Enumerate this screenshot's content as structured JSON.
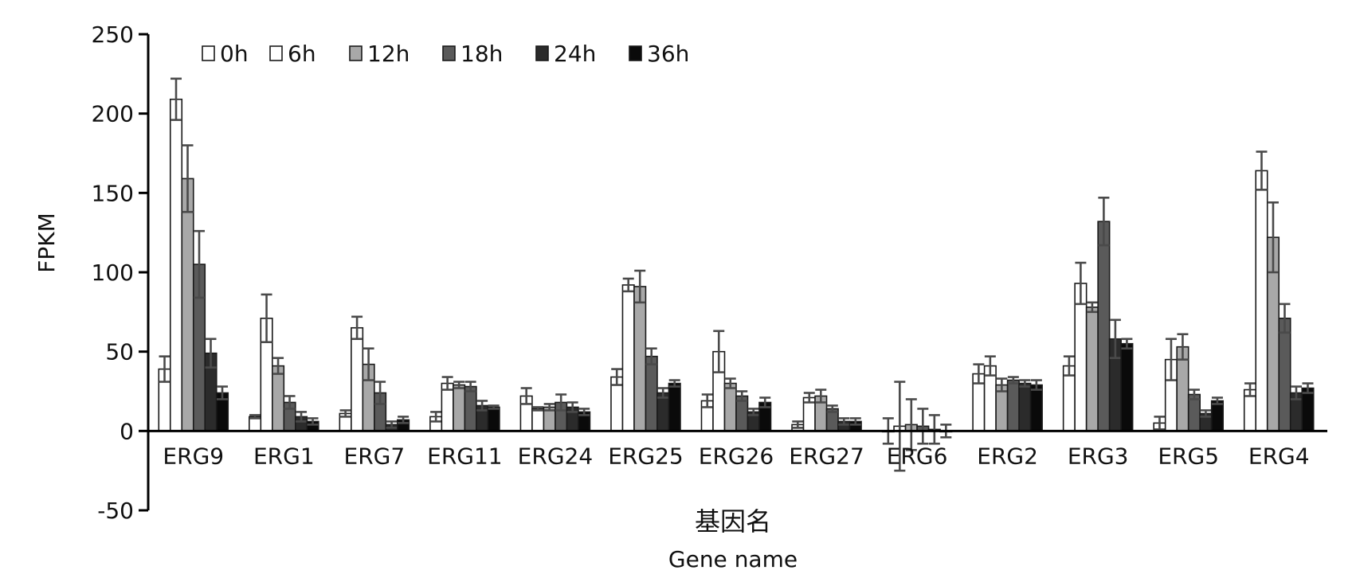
{
  "chart_data": {
    "type": "bar",
    "title": "",
    "ylabel": "FPKM",
    "xlabel_cn": "基因名",
    "xlabel": "Gene name",
    "ylim": [
      -50,
      250
    ],
    "yticks": [
      -50,
      0,
      50,
      100,
      150,
      200,
      250
    ],
    "legend_position": "top-left",
    "grid": false,
    "categories": [
      "ERG9",
      "ERG1",
      "ERG7",
      "ERG11",
      "ERG24",
      "ERG25",
      "ERG26",
      "ERG27",
      "ERG6",
      "ERG2",
      "ERG3",
      "ERG5",
      "ERG4"
    ],
    "series": [
      {
        "name": "0h",
        "color": "#ffffff",
        "values": [
          39,
          9,
          11,
          9,
          22,
          34,
          19,
          4,
          0,
          36,
          41,
          5,
          26
        ],
        "errors": [
          8,
          1,
          2,
          3,
          5,
          5,
          4,
          2,
          8,
          6,
          6,
          4,
          4
        ]
      },
      {
        "name": "6h",
        "color": "#ffffff",
        "values": [
          209,
          71,
          65,
          30,
          14,
          92,
          50,
          21,
          3,
          41,
          93,
          45,
          164
        ],
        "errors": [
          13,
          15,
          7,
          4,
          1,
          4,
          13,
          3,
          28,
          6,
          13,
          13,
          12
        ]
      },
      {
        "name": "12h",
        "color": "#a8a8a8",
        "values": [
          159,
          41,
          42,
          29,
          15,
          91,
          30,
          22,
          4,
          29,
          78,
          53,
          122
        ],
        "errors": [
          21,
          5,
          10,
          2,
          2,
          10,
          3,
          4,
          16,
          4,
          3,
          8,
          22
        ]
      },
      {
        "name": "18h",
        "color": "#5a5a5a",
        "values": [
          105,
          18,
          24,
          28,
          18,
          47,
          22,
          14,
          3,
          32,
          132,
          23,
          71
        ],
        "errors": [
          21,
          4,
          7,
          3,
          5,
          5,
          3,
          2,
          11,
          2,
          15,
          3,
          9
        ]
      },
      {
        "name": "24h",
        "color": "#2b2b2b",
        "values": [
          49,
          9,
          4,
          16,
          15,
          24,
          12,
          6,
          1,
          30,
          58,
          11,
          24
        ],
        "errors": [
          9,
          3,
          2,
          3,
          3,
          3,
          2,
          2,
          9,
          2,
          12,
          2,
          4
        ]
      },
      {
        "name": "36h",
        "color": "#0a0a0a",
        "values": [
          24,
          6,
          7,
          15,
          12,
          30,
          18,
          6,
          0,
          29,
          55,
          19,
          27
        ],
        "errors": [
          4,
          2,
          2,
          1,
          2,
          2,
          3,
          2,
          4,
          3,
          3,
          2,
          3
        ]
      }
    ]
  }
}
